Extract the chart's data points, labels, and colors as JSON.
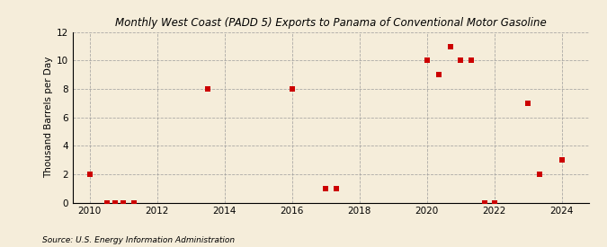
{
  "title": "Monthly West Coast (PADD 5) Exports to Panama of Conventional Motor Gasoline",
  "ylabel": "Thousand Barrels per Day",
  "source": "Source: U.S. Energy Information Administration",
  "background_color": "#f5edda",
  "marker_color": "#cc0000",
  "xlim": [
    2009.5,
    2024.8
  ],
  "ylim": [
    0,
    12
  ],
  "yticks": [
    0,
    2,
    4,
    6,
    8,
    10,
    12
  ],
  "xticks": [
    2010,
    2012,
    2014,
    2016,
    2018,
    2020,
    2022,
    2024
  ],
  "data_x": [
    2010.0,
    2010.5,
    2010.75,
    2011.0,
    2011.3,
    2013.5,
    2016.0,
    2017.0,
    2017.3,
    2020.0,
    2020.35,
    2020.7,
    2021.0,
    2021.3,
    2021.7,
    2022.0,
    2023.0,
    2023.35,
    2024.0
  ],
  "data_y": [
    2,
    0,
    0,
    0,
    0,
    8,
    8,
    1,
    1,
    10,
    9,
    11,
    10,
    10,
    0,
    0,
    7,
    2,
    3
  ]
}
